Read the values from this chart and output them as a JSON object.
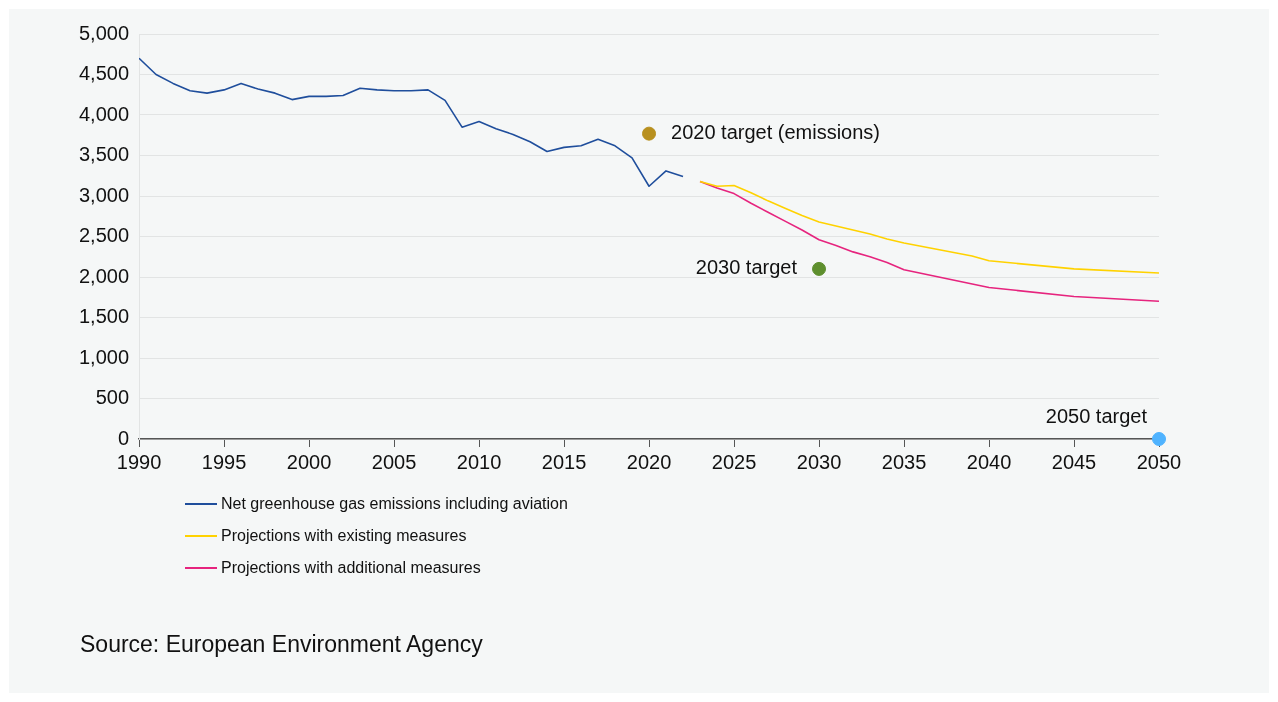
{
  "chart_data": {
    "type": "line",
    "xlim": [
      1990,
      2050
    ],
    "xticks": [
      1990,
      1995,
      2000,
      2005,
      2010,
      2015,
      2020,
      2025,
      2030,
      2035,
      2040,
      2045,
      2050
    ],
    "ylim": [
      0,
      5000
    ],
    "yticks": [
      0,
      500,
      {
        "value": 1000,
        "label": "1,000"
      },
      {
        "value": 1500,
        "label": "1,500"
      },
      {
        "value": 2000,
        "label": "2,000"
      },
      {
        "value": 2500,
        "label": "2,500"
      },
      {
        "value": 3000,
        "label": "3,000"
      },
      {
        "value": 3500,
        "label": "3,500"
      },
      {
        "value": 4000,
        "label": "4,000"
      },
      {
        "value": 4500,
        "label": "4,500"
      },
      {
        "value": 5000,
        "label": "5,000"
      }
    ],
    "grid": "y",
    "legend": "bottom",
    "marker": "none",
    "series": [
      {
        "name": "Net greenhouse gas emissions including aviation",
        "color": "#1f4e9c",
        "x": [
          1990,
          1991,
          1992,
          1993,
          1994,
          1995,
          1996,
          1997,
          1998,
          1999,
          2000,
          2001,
          2002,
          2003,
          2004,
          2005,
          2006,
          2007,
          2008,
          2009,
          2010,
          2011,
          2012,
          2013,
          2014,
          2015,
          2016,
          2017,
          2018,
          2019,
          2020,
          2021,
          2022
        ],
        "values": [
          4700,
          4500,
          4390,
          4300,
          4270,
          4310,
          4390,
          4320,
          4270,
          4190,
          4230,
          4230,
          4240,
          4330,
          4310,
          4300,
          4300,
          4310,
          4180,
          3850,
          3920,
          3830,
          3760,
          3670,
          3550,
          3600,
          3620,
          3700,
          3620,
          3470,
          3120,
          3310,
          3240
        ]
      },
      {
        "name": "Projections with existing measures",
        "color": "#ffd200",
        "x": [
          2023,
          2024,
          2025,
          2026,
          2027,
          2028,
          2029,
          2030,
          2031,
          2032,
          2033,
          2034,
          2035,
          2036,
          2037,
          2038,
          2039,
          2040,
          2045,
          2050
        ],
        "values": [
          3180,
          3120,
          3130,
          3040,
          2940,
          2850,
          2760,
          2680,
          2630,
          2580,
          2530,
          2470,
          2420,
          2380,
          2340,
          2300,
          2260,
          2200,
          2100,
          2050
        ]
      },
      {
        "name": "Projections with additional measures",
        "color": "#e6247e",
        "x": [
          2023,
          2024,
          2025,
          2026,
          2027,
          2028,
          2029,
          2030,
          2031,
          2032,
          2033,
          2034,
          2035,
          2040,
          2045,
          2050
        ],
        "values": [
          3180,
          3100,
          3030,
          2910,
          2800,
          2690,
          2580,
          2460,
          2390,
          2310,
          2250,
          2180,
          2090,
          1870,
          1760,
          1700
        ]
      },
      {
        "type": "scatter",
        "marker": "circle",
        "color": "#b8901f",
        "x": [
          2020
        ],
        "values": [
          3770
        ]
      },
      {
        "type": "scatter",
        "marker": "circle",
        "color": "#5e8f2e",
        "x": [
          2030
        ],
        "values": [
          2100
        ]
      },
      {
        "type": "scatter",
        "marker": "circle",
        "color": "#4fb3ff",
        "x": [
          2050
        ],
        "values": [
          0
        ]
      }
    ],
    "annotations": [
      {
        "text": "2020 target (emissions)",
        "x": 2020,
        "y": 3770
      },
      {
        "text": "2030 target",
        "x": 2030,
        "y": 2100
      },
      {
        "text": "2050 target",
        "x": 2050,
        "y": 0
      },
      "Source: European Environment Agency"
    ]
  }
}
